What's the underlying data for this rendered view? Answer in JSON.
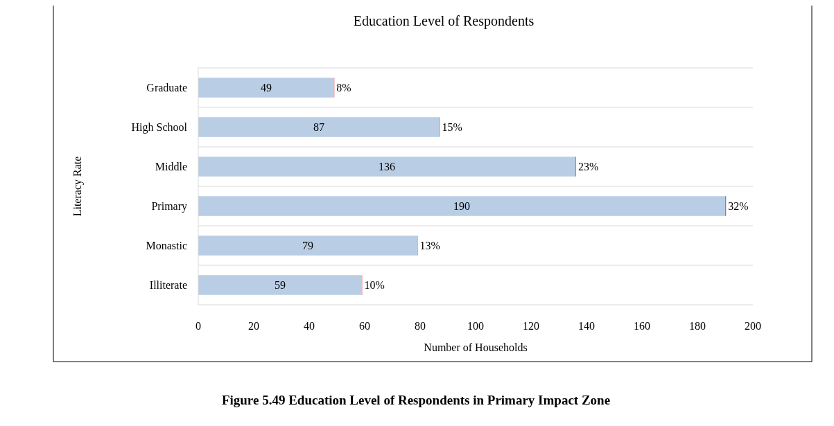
{
  "chart_data": {
    "type": "bar",
    "orientation": "horizontal",
    "stacked": true,
    "title": "Education Level of Respondents",
    "xlabel": "Number of Households",
    "ylabel": "Literacy Rate",
    "categories": [
      "Graduate",
      "High School",
      "Middle",
      "Primary",
      "Monastic",
      "Illiterate"
    ],
    "series": [
      {
        "color": "#b9cde5",
        "values": [
          49,
          87,
          136,
          190,
          79,
          59
        ],
        "value_labels": [
          "49",
          "87",
          "136",
          "190",
          "79",
          "59"
        ]
      },
      {
        "color": "#e06060",
        "values": [
          0.08,
          0.15,
          0.23,
          0.32,
          0.13,
          0.1
        ],
        "value_labels": [
          "8%",
          "15%",
          "23%",
          "32%",
          "13%",
          "10%"
        ]
      }
    ],
    "xlim": [
      0,
      200
    ],
    "xticks": [
      0,
      20,
      40,
      60,
      80,
      100,
      120,
      140,
      160,
      180,
      200
    ],
    "grid": "y",
    "annotations": [
      "Figure 5.49 Education Level of Respondents in Primary Impact Zone"
    ]
  }
}
